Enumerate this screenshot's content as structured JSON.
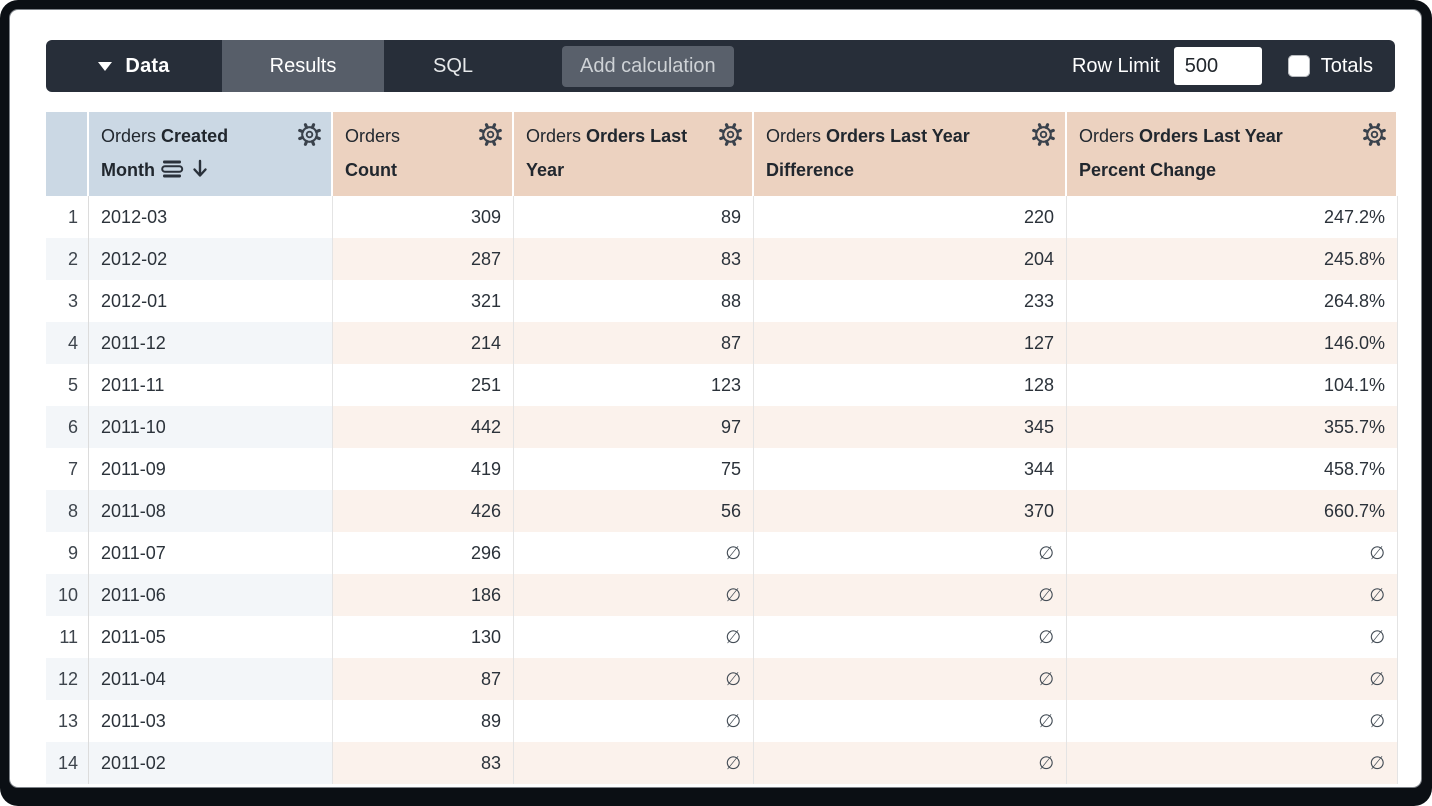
{
  "toolbar": {
    "data_label": "Data",
    "results_tab": "Results",
    "sql_tab": "SQL",
    "add_calculation_label": "Add calculation",
    "row_limit_label": "Row Limit",
    "row_limit_value": "500",
    "totals_label": "Totals",
    "totals_checked": false
  },
  "table": {
    "null_symbol": "∅",
    "columns": [
      {
        "prefix": "Orders",
        "name": "Created Month",
        "type": "dimension",
        "sorted": "desc"
      },
      {
        "prefix": "Orders",
        "name": "Count",
        "type": "measure",
        "sorted": null
      },
      {
        "prefix": "Orders",
        "name": "Orders Last Year",
        "type": "measure",
        "sorted": null
      },
      {
        "prefix": "Orders",
        "name": "Orders Last Year Difference",
        "type": "measure",
        "sorted": null
      },
      {
        "prefix": "Orders",
        "name": "Orders Last Year Percent Change",
        "type": "measure",
        "sorted": null
      }
    ],
    "rows": [
      {
        "n": "1",
        "month": "2012-03",
        "count": "309",
        "last_year": "89",
        "difference": "220",
        "percent_change": "247.2%"
      },
      {
        "n": "2",
        "month": "2012-02",
        "count": "287",
        "last_year": "83",
        "difference": "204",
        "percent_change": "245.8%"
      },
      {
        "n": "3",
        "month": "2012-01",
        "count": "321",
        "last_year": "88",
        "difference": "233",
        "percent_change": "264.8%"
      },
      {
        "n": "4",
        "month": "2011-12",
        "count": "214",
        "last_year": "87",
        "difference": "127",
        "percent_change": "146.0%"
      },
      {
        "n": "5",
        "month": "2011-11",
        "count": "251",
        "last_year": "123",
        "difference": "128",
        "percent_change": "104.1%"
      },
      {
        "n": "6",
        "month": "2011-10",
        "count": "442",
        "last_year": "97",
        "difference": "345",
        "percent_change": "355.7%"
      },
      {
        "n": "7",
        "month": "2011-09",
        "count": "419",
        "last_year": "75",
        "difference": "344",
        "percent_change": "458.7%"
      },
      {
        "n": "8",
        "month": "2011-08",
        "count": "426",
        "last_year": "56",
        "difference": "370",
        "percent_change": "660.7%"
      },
      {
        "n": "9",
        "month": "2011-07",
        "count": "296",
        "last_year": "∅",
        "difference": "∅",
        "percent_change": "∅"
      },
      {
        "n": "10",
        "month": "2011-06",
        "count": "186",
        "last_year": "∅",
        "difference": "∅",
        "percent_change": "∅"
      },
      {
        "n": "11",
        "month": "2011-05",
        "count": "130",
        "last_year": "∅",
        "difference": "∅",
        "percent_change": "∅"
      },
      {
        "n": "12",
        "month": "2011-04",
        "count": "87",
        "last_year": "∅",
        "difference": "∅",
        "percent_change": "∅"
      },
      {
        "n": "13",
        "month": "2011-03",
        "count": "89",
        "last_year": "∅",
        "difference": "∅",
        "percent_change": "∅"
      },
      {
        "n": "14",
        "month": "2011-02",
        "count": "83",
        "last_year": "∅",
        "difference": "∅",
        "percent_change": "∅"
      }
    ]
  },
  "colors": {
    "topbar_bg": "#272e39",
    "active_tab_bg": "#575e69",
    "dimension_header_bg": "#cbd8e4",
    "measure_header_bg": "#ecd2c0",
    "dimension_row_tint": "#f3f6f9",
    "measure_row_tint": "#fbf2ec",
    "body_text": "#2b323a"
  }
}
